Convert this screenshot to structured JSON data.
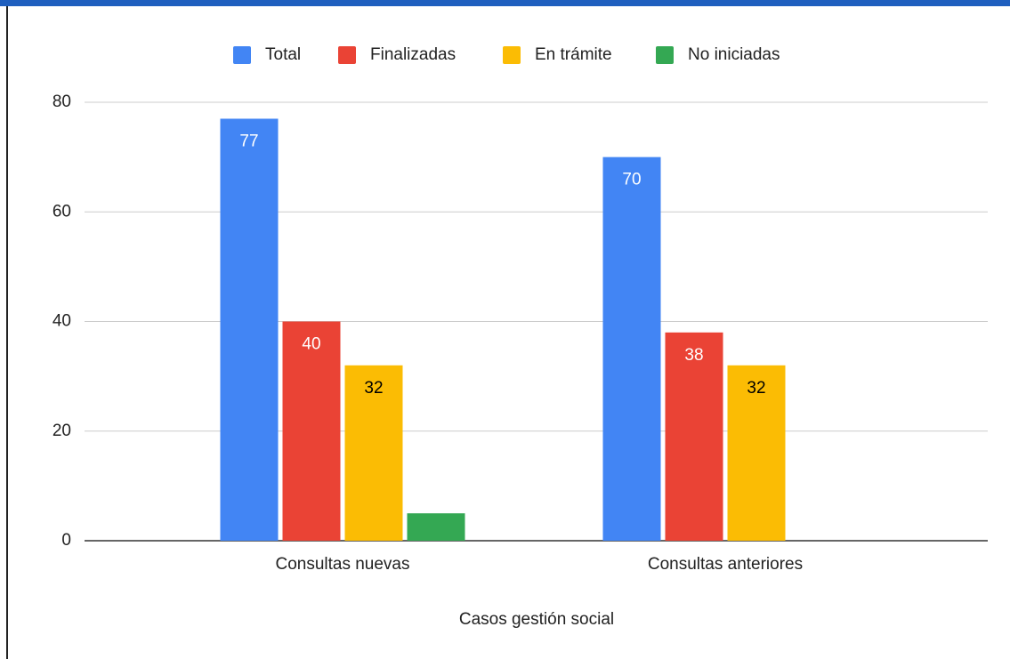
{
  "chart_data": {
    "type": "bar",
    "x_label": "Casos gestión social",
    "categories": [
      "Consultas nuevas",
      "Consultas anteriores"
    ],
    "series": [
      {
        "name": "Total",
        "color": "#4285f4",
        "label_color": "#ffffff",
        "data_labels": true,
        "values": [
          77,
          70
        ]
      },
      {
        "name": "Finalizadas",
        "color": "#ea4335",
        "label_color": "#ffffff",
        "data_labels": true,
        "values": [
          40,
          38
        ]
      },
      {
        "name": "En trámite",
        "color": "#fbbc04",
        "label_color": "#000000",
        "data_labels": true,
        "values": [
          32,
          32
        ]
      },
      {
        "name": "No iniciadas",
        "color": "#34a853",
        "data_labels": false,
        "values": [
          5,
          0
        ]
      }
    ],
    "ylim": [
      0,
      80
    ],
    "yticks": [
      0,
      20,
      40,
      60,
      80
    ],
    "grid": true,
    "legend": "top"
  }
}
